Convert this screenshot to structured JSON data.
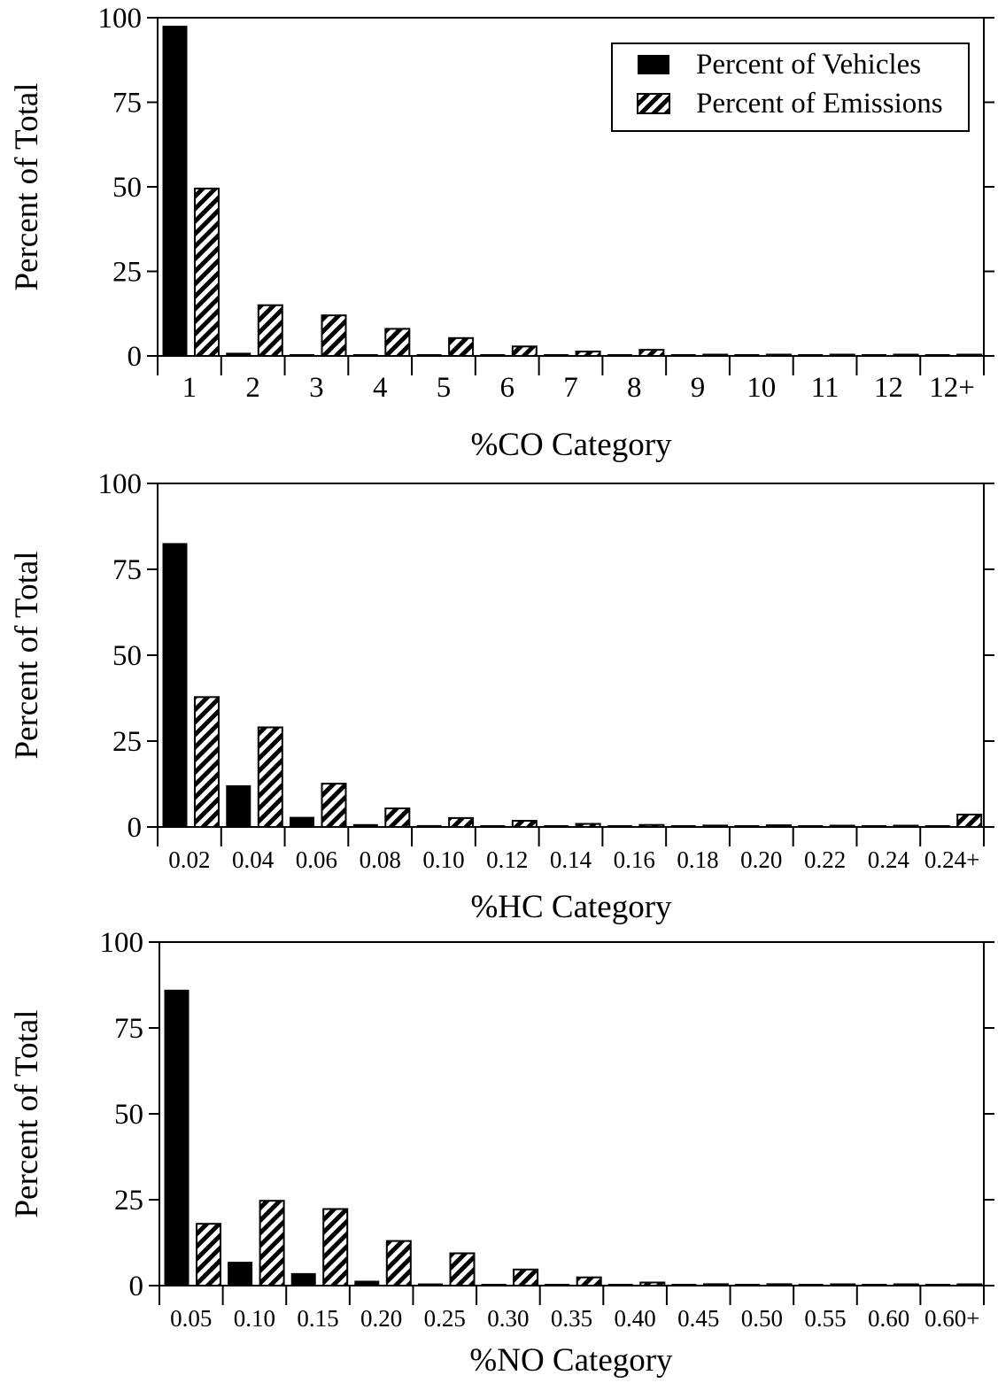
{
  "legend": {
    "vehicles_label": "Percent of Vehicles",
    "emissions_label": "Percent of Emissions",
    "placement": "top-right"
  },
  "colors": {
    "vehicles_fill": "#000000",
    "emissions_fill": "hatched black on white",
    "axis": "#000000"
  },
  "chart_data": [
    {
      "type": "bar",
      "xlabel": "%CO Category",
      "ylabel": "Percent of Total",
      "ylim": [
        0,
        100
      ],
      "yticks": [
        0,
        25,
        50,
        75,
        100
      ],
      "grid": false,
      "categories": [
        "1",
        "2",
        "3",
        "4",
        "5",
        "6",
        "7",
        "8",
        "9",
        "10",
        "11",
        "12",
        "12+"
      ],
      "series": [
        {
          "name": "Percent of Vehicles",
          "values": [
            97.5,
            0.8,
            0.4,
            0.3,
            0.3,
            0.3,
            0.2,
            0.2,
            0.1,
            0.1,
            0.1,
            0.1,
            0.1
          ]
        },
        {
          "name": "Percent of Emissions",
          "values": [
            49.5,
            15,
            12,
            8,
            5.3,
            2.8,
            1.3,
            1.8,
            0.3,
            0.3,
            0.4,
            0.2,
            0.2
          ]
        }
      ]
    },
    {
      "type": "bar",
      "xlabel": "%HC Category",
      "ylabel": "Percent of Total",
      "ylim": [
        0,
        100
      ],
      "yticks": [
        0,
        25,
        50,
        75,
        100
      ],
      "grid": false,
      "categories": [
        "0.02",
        "0.04",
        "0.06",
        "0.08",
        "0.10",
        "0.12",
        "0.14",
        "0.16",
        "0.18",
        "0.20",
        "0.22",
        "0.24",
        "0.24+"
      ],
      "series": [
        {
          "name": "Percent of Vehicles",
          "values": [
            82.5,
            12,
            2.8,
            0.7,
            0.4,
            0.3,
            0.2,
            0.2,
            0.1,
            0.1,
            0.1,
            0.1,
            0.2
          ]
        },
        {
          "name": "Percent of Emissions",
          "values": [
            37.8,
            29,
            12.6,
            5.4,
            2.6,
            1.8,
            0.9,
            0.6,
            0.4,
            0.5,
            0.3,
            0.3,
            3.6
          ]
        }
      ]
    },
    {
      "type": "bar",
      "xlabel": "%NO Category",
      "ylabel": "Percent of Total",
      "ylim": [
        0,
        100
      ],
      "yticks": [
        0,
        25,
        50,
        75,
        100
      ],
      "grid": false,
      "categories": [
        "0.05",
        "0.10",
        "0.15",
        "0.20",
        "0.25",
        "0.30",
        "0.35",
        "0.40",
        "0.45",
        "0.50",
        "0.55",
        "0.60",
        "0.60+"
      ],
      "series": [
        {
          "name": "Percent of Vehicles",
          "values": [
            86,
            6.8,
            3.5,
            1.3,
            0.5,
            0.3,
            0.2,
            0.2,
            0.1,
            0.1,
            0.1,
            0.1,
            0.1
          ]
        },
        {
          "name": "Percent of Emissions",
          "values": [
            18,
            24.7,
            22.3,
            13,
            9.4,
            4.7,
            2.4,
            0.9,
            0.4,
            0.4,
            0.3,
            0.3,
            0.3
          ]
        }
      ]
    }
  ]
}
